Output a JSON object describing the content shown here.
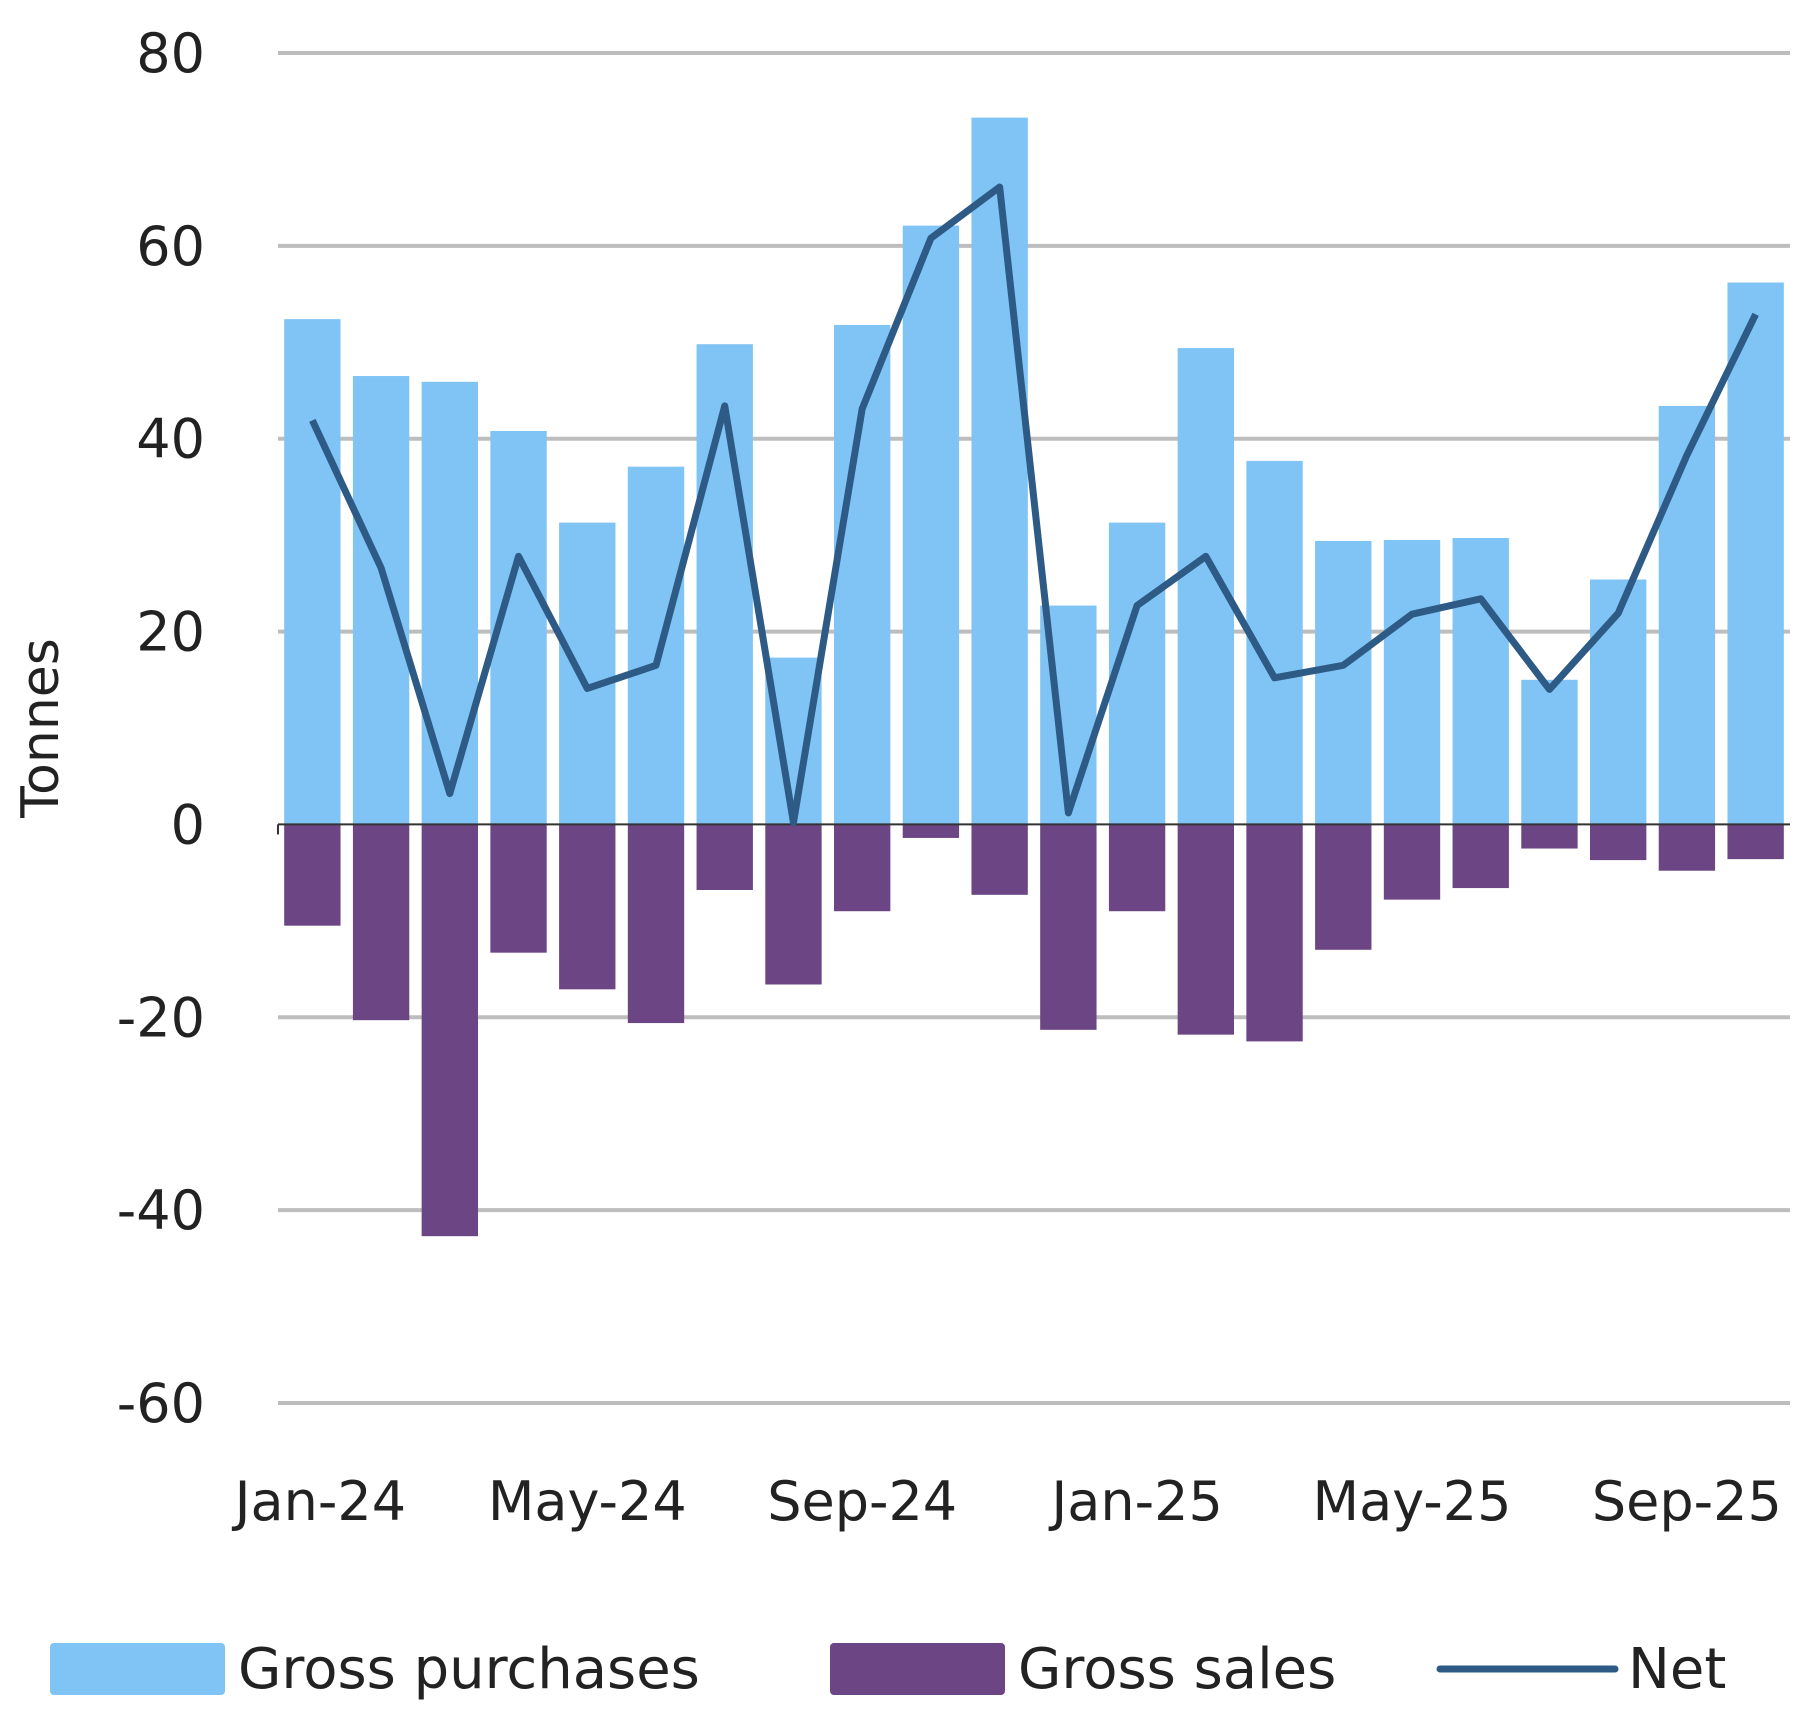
{
  "chart_data": {
    "type": "bar",
    "title": "",
    "xlabel": "",
    "ylabel": "Tonnes",
    "ylim": [
      -60,
      80
    ],
    "yticks": [
      80,
      60,
      40,
      20,
      0,
      -20,
      -40,
      -60
    ],
    "grid": true,
    "legend_position": "bottom",
    "categories": [
      "Jan-24",
      "Feb-24",
      "Mar-24",
      "Apr-24",
      "May-24",
      "Jun-24",
      "Jul-24",
      "Aug-24",
      "Sep-24",
      "Oct-24",
      "Nov-24",
      "Dec-24",
      "Jan-25",
      "Feb-25",
      "Mar-25",
      "Apr-25",
      "May-25",
      "Jun-25",
      "Jul-25",
      "Aug-25",
      "Sep-25",
      "Oct-25"
    ],
    "xtick_labels": [
      "Jan-24",
      "May-24",
      "Sep-24",
      "Jan-25",
      "May-25",
      "Sep-25"
    ],
    "series": [
      {
        "name": "Gross purchases",
        "type": "bar",
        "color": "#7fc4f4",
        "values": [
          52.4,
          46.5,
          45.9,
          40.8,
          31.3,
          37.1,
          49.8,
          17.3,
          51.8,
          62.1,
          73.3,
          22.7,
          31.3,
          49.4,
          37.7,
          29.4,
          29.5,
          29.7,
          15.0,
          25.4,
          43.4,
          56.2
        ]
      },
      {
        "name": "Gross sales",
        "type": "bar",
        "color": "#6b4584",
        "values": [
          -10.5,
          -20.3,
          -42.7,
          -13.3,
          -17.1,
          -20.6,
          -6.8,
          -16.6,
          -9.0,
          -1.4,
          -7.3,
          -21.3,
          -9.0,
          -21.8,
          -22.5,
          -13.0,
          -7.8,
          -6.6,
          -2.5,
          -3.7,
          -4.8,
          -3.6
        ]
      },
      {
        "name": "Net",
        "type": "line",
        "color": "#2e5a86",
        "values": [
          41.9,
          26.6,
          3.2,
          27.8,
          14.1,
          16.5,
          43.4,
          0.2,
          43.1,
          60.8,
          66.1,
          1.2,
          22.7,
          27.8,
          15.2,
          16.5,
          21.8,
          23.4,
          14.0,
          21.9,
          38.3,
          52.9
        ]
      }
    ]
  }
}
